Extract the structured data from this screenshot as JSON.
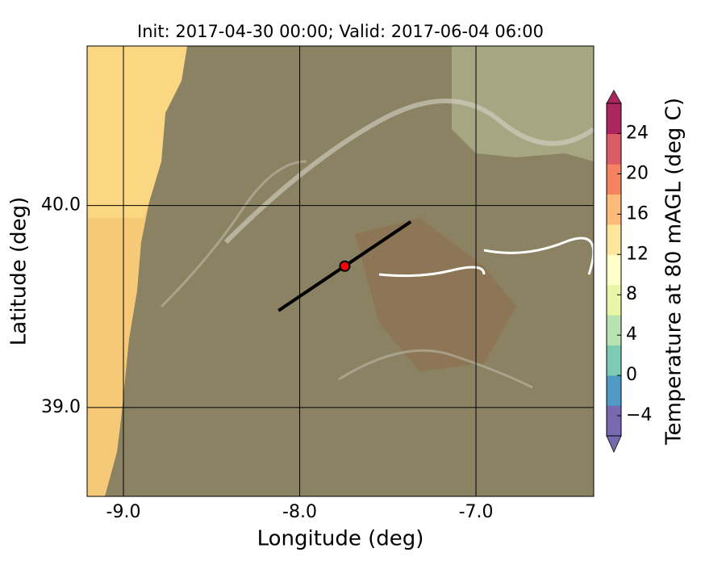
{
  "chart_data": {
    "type": "map",
    "title": "Init: 2017-04-30 00:00; Valid: 2017-06-04 06:00",
    "x_label": "Longitude (deg)",
    "y_label": "Latitude (deg)",
    "xlim": [
      -9.206,
      -6.332
    ],
    "ylim": [
      38.56,
      40.79
    ],
    "xticks": [
      {
        "value": -9,
        "label": "-9.0"
      },
      {
        "value": -8,
        "label": "-8.0"
      },
      {
        "value": -7,
        "label": "-7.0"
      }
    ],
    "yticks": [
      {
        "value": 39,
        "label": "39.0"
      },
      {
        "value": 40,
        "label": "40.0"
      }
    ],
    "grid": true,
    "transect": {
      "lon": [
        -8.12,
        -7.37
      ],
      "lat": [
        39.48,
        39.92
      ],
      "color": "#000000"
    },
    "site": {
      "lon": -7.744,
      "lat": 39.7,
      "color": "#ff0000"
    },
    "colorbar": {
      "label": "Temperature at 80 mAGL (deg C)",
      "clim": [
        -6,
        27
      ],
      "ticks": [
        {
          "value": -4,
          "label": "−4"
        },
        0,
        4,
        8,
        12,
        16,
        20,
        24
      ],
      "colors": [
        "#5e4fa2",
        "#3288bd",
        "#66c2a5",
        "#abdda4",
        "#e6f598",
        "#ffffbf",
        "#fee08b",
        "#fdae61",
        "#f46d43",
        "#d53e4f",
        "#9e0142"
      ]
    }
  }
}
